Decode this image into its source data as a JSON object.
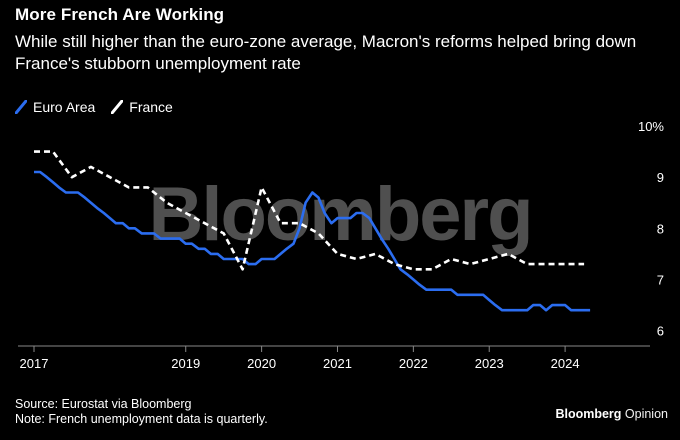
{
  "title": "More French Are Working",
  "subtitle": "While still higher than the euro-zone average, Macron's reforms helped bring down France's stubborn unemployment rate",
  "watermark": "Bloomberg",
  "source_line": "Source: Eurostat via Bloomberg",
  "note_line": "Note: French unemployment data is quarterly.",
  "brand": {
    "name": "Bloomberg",
    "suffix": "Opinion"
  },
  "colors": {
    "background": "#000000",
    "euro": "#2b6df0",
    "france": "#ffffff",
    "text": "#ffffff",
    "axis": "#888888"
  },
  "chart_data": {
    "type": "line",
    "title": "More French Are Working",
    "xlabel": "",
    "ylabel": "%",
    "xlim": [
      2017.0,
      2024.75
    ],
    "ylim": [
      5.7,
      10.0
    ],
    "x_ticks": [
      2017,
      2019,
      2020,
      2021,
      2022,
      2023,
      2024
    ],
    "x_tick_labels": [
      "2017",
      "2019",
      "2020",
      "2021",
      "2022",
      "2023",
      "2024"
    ],
    "y_ticks": [
      6,
      7,
      8,
      9,
      10
    ],
    "y_tick_labels": [
      "6",
      "7",
      "8",
      "9",
      "10%"
    ],
    "series": [
      {
        "name": "Euro Area",
        "style": "solid",
        "x": [
          2017.0,
          2017.08,
          2017.17,
          2017.25,
          2017.33,
          2017.42,
          2017.5,
          2017.58,
          2017.67,
          2017.75,
          2017.83,
          2017.92,
          2018.0,
          2018.08,
          2018.17,
          2018.25,
          2018.33,
          2018.42,
          2018.5,
          2018.58,
          2018.67,
          2018.75,
          2018.83,
          2018.92,
          2019.0,
          2019.08,
          2019.17,
          2019.25,
          2019.33,
          2019.42,
          2019.5,
          2019.58,
          2019.67,
          2019.75,
          2019.83,
          2019.92,
          2020.0,
          2020.08,
          2020.17,
          2020.25,
          2020.33,
          2020.42,
          2020.5,
          2020.58,
          2020.67,
          2020.75,
          2020.83,
          2020.92,
          2021.0,
          2021.08,
          2021.17,
          2021.25,
          2021.33,
          2021.42,
          2021.5,
          2021.58,
          2021.67,
          2021.75,
          2021.83,
          2021.92,
          2022.0,
          2022.08,
          2022.17,
          2022.25,
          2022.33,
          2022.42,
          2022.5,
          2022.58,
          2022.67,
          2022.75,
          2022.83,
          2022.92,
          2023.0,
          2023.08,
          2023.17,
          2023.25,
          2023.33,
          2023.42,
          2023.5,
          2023.58,
          2023.67,
          2023.75,
          2023.83,
          2023.92,
          2024.0,
          2024.08,
          2024.17,
          2024.25,
          2024.33
        ],
        "values": [
          9.1,
          9.1,
          9.0,
          8.9,
          8.8,
          8.7,
          8.7,
          8.7,
          8.6,
          8.5,
          8.4,
          8.3,
          8.2,
          8.1,
          8.1,
          8.0,
          8.0,
          7.9,
          7.9,
          7.9,
          7.8,
          7.8,
          7.8,
          7.8,
          7.7,
          7.7,
          7.6,
          7.6,
          7.5,
          7.5,
          7.4,
          7.4,
          7.4,
          7.4,
          7.3,
          7.3,
          7.4,
          7.4,
          7.4,
          7.5,
          7.6,
          7.7,
          8.0,
          8.5,
          8.7,
          8.6,
          8.3,
          8.1,
          8.2,
          8.2,
          8.2,
          8.3,
          8.3,
          8.2,
          8.0,
          7.8,
          7.6,
          7.4,
          7.2,
          7.1,
          7.0,
          6.9,
          6.8,
          6.8,
          6.8,
          6.8,
          6.8,
          6.7,
          6.7,
          6.7,
          6.7,
          6.7,
          6.6,
          6.5,
          6.4,
          6.4,
          6.4,
          6.4,
          6.4,
          6.5,
          6.5,
          6.4,
          6.5,
          6.5,
          6.5,
          6.4,
          6.4,
          6.4,
          6.4
        ]
      },
      {
        "name": "France",
        "style": "dashed",
        "x": [
          2017.0,
          2017.25,
          2017.5,
          2017.75,
          2018.0,
          2018.25,
          2018.5,
          2018.75,
          2019.0,
          2019.25,
          2019.5,
          2019.75,
          2020.0,
          2020.25,
          2020.5,
          2020.75,
          2021.0,
          2021.25,
          2021.5,
          2021.75,
          2022.0,
          2022.25,
          2022.5,
          2022.75,
          2023.0,
          2023.25,
          2023.5,
          2023.75,
          2024.0,
          2024.25
        ],
        "values": [
          9.5,
          9.5,
          9.0,
          9.2,
          9.0,
          8.8,
          8.8,
          8.5,
          8.3,
          8.1,
          7.9,
          7.2,
          8.8,
          8.1,
          8.1,
          7.9,
          7.5,
          7.4,
          7.5,
          7.3,
          7.2,
          7.2,
          7.4,
          7.3,
          7.4,
          7.5,
          7.3,
          7.3,
          7.3,
          7.3
        ]
      }
    ]
  }
}
